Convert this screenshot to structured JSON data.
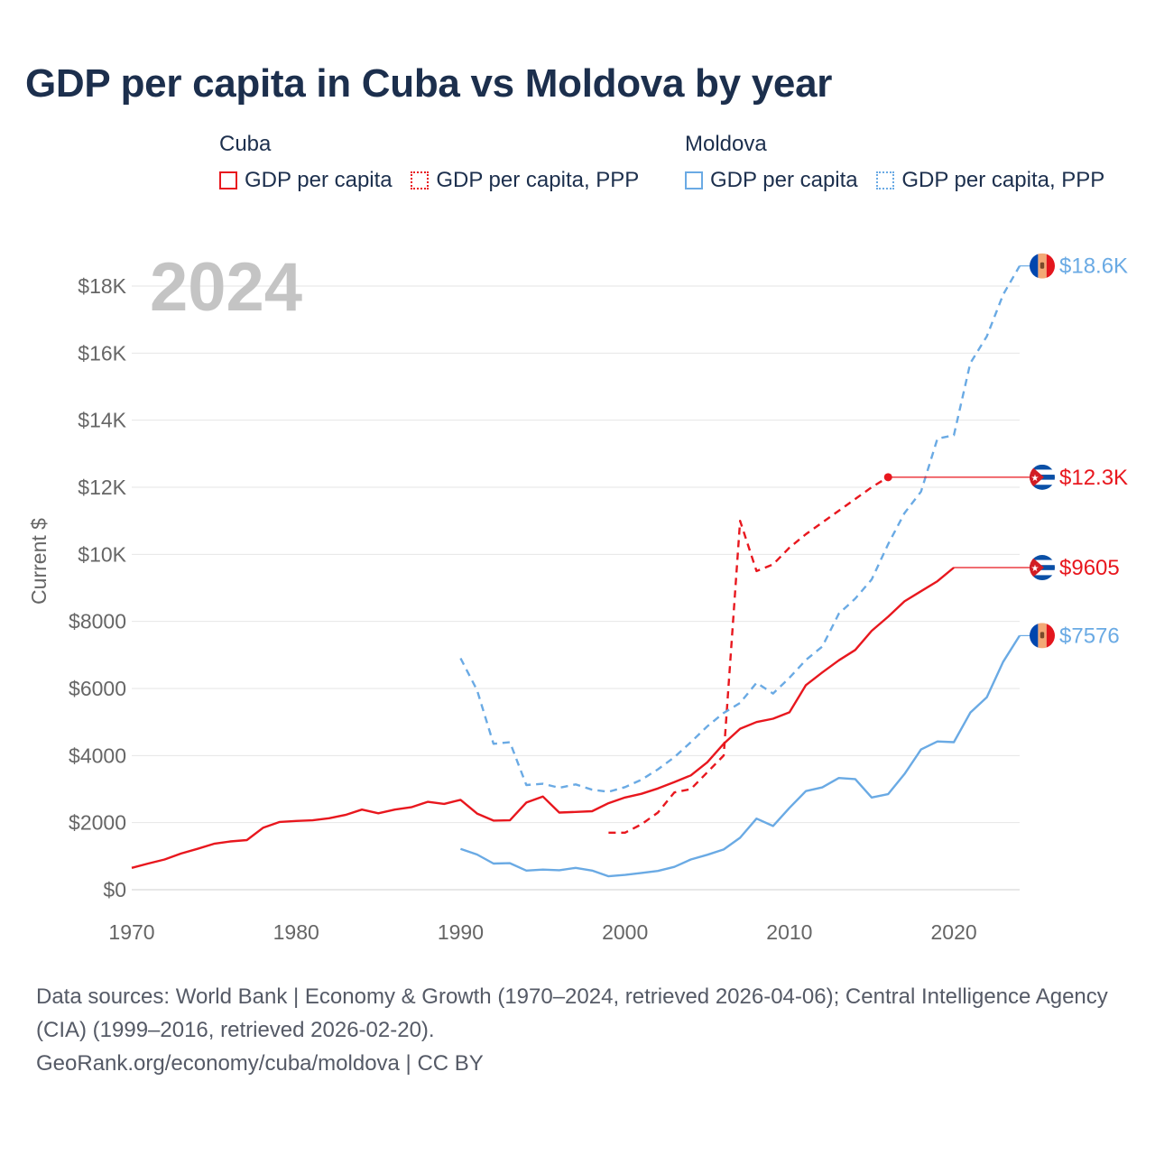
{
  "title": "GDP per capita in Cuba vs Moldova by year",
  "legend": {
    "cuba": {
      "name": "Cuba",
      "gdp": "GDP per capita",
      "ppp": "GDP per capita, PPP"
    },
    "moldova": {
      "name": "Moldova",
      "gdp": "GDP per capita",
      "ppp": "GDP per capita, PPP"
    }
  },
  "year_overlay": "2024",
  "source_text": "Data sources: World Bank | Economy & Growth (1970–2024, retrieved 2026-04-06); Central Intelligence Agency (CIA) (1999–2016, retrieved 2026-02-20).",
  "credit_text": "GeoRank.org/economy/cuba/moldova | CC BY",
  "colors": {
    "cuba": "#e8171e",
    "moldova": "#6aaae4",
    "title": "#1c2f4d",
    "axis_text": "#666666",
    "grid": "#e6e6e6",
    "year_overlay": "#c4c4c4"
  },
  "chart_data": {
    "type": "line",
    "title": "GDP per capita in Cuba vs Moldova by year",
    "xlabel": "",
    "ylabel": "Current $",
    "xlim": [
      1970,
      2024
    ],
    "ylim": [
      0,
      19000
    ],
    "x_ticks": [
      1970,
      1980,
      1990,
      2000,
      2010,
      2020
    ],
    "y_ticks": [
      {
        "value": 0,
        "label": "$0"
      },
      {
        "value": 2000,
        "label": "$2000"
      },
      {
        "value": 4000,
        "label": "$4000"
      },
      {
        "value": 6000,
        "label": "$6000"
      },
      {
        "value": 8000,
        "label": "$8000"
      },
      {
        "value": 10000,
        "label": "$10K"
      },
      {
        "value": 12000,
        "label": "$12K"
      },
      {
        "value": 14000,
        "label": "$14K"
      },
      {
        "value": 16000,
        "label": "$16K"
      },
      {
        "value": 18000,
        "label": "$18K"
      }
    ],
    "grid": true,
    "series": [
      {
        "name": "Cuba GDP per capita",
        "country": "cuba",
        "style": "solid",
        "end_label": "$9605",
        "points": [
          [
            1970,
            650
          ],
          [
            1971,
            780
          ],
          [
            1972,
            900
          ],
          [
            1973,
            1080
          ],
          [
            1974,
            1220
          ],
          [
            1975,
            1370
          ],
          [
            1976,
            1440
          ],
          [
            1977,
            1480
          ],
          [
            1978,
            1850
          ],
          [
            1979,
            2020
          ],
          [
            1980,
            2050
          ],
          [
            1981,
            2070
          ],
          [
            1982,
            2130
          ],
          [
            1983,
            2230
          ],
          [
            1984,
            2390
          ],
          [
            1985,
            2280
          ],
          [
            1986,
            2390
          ],
          [
            1987,
            2460
          ],
          [
            1988,
            2620
          ],
          [
            1989,
            2560
          ],
          [
            1990,
            2680
          ],
          [
            1991,
            2270
          ],
          [
            1992,
            2060
          ],
          [
            1993,
            2070
          ],
          [
            1994,
            2600
          ],
          [
            1995,
            2780
          ],
          [
            1996,
            2300
          ],
          [
            1997,
            2320
          ],
          [
            1998,
            2340
          ],
          [
            1999,
            2580
          ],
          [
            2000,
            2750
          ],
          [
            2001,
            2860
          ],
          [
            2002,
            3020
          ],
          [
            2003,
            3210
          ],
          [
            2004,
            3410
          ],
          [
            2005,
            3800
          ],
          [
            2006,
            4350
          ],
          [
            2007,
            4800
          ],
          [
            2008,
            5000
          ],
          [
            2009,
            5100
          ],
          [
            2010,
            5290
          ],
          [
            2011,
            6100
          ],
          [
            2012,
            6480
          ],
          [
            2013,
            6840
          ],
          [
            2014,
            7150
          ],
          [
            2015,
            7720
          ],
          [
            2016,
            8140
          ],
          [
            2017,
            8600
          ],
          [
            2018,
            8900
          ],
          [
            2019,
            9200
          ],
          [
            2020,
            9605
          ]
        ]
      },
      {
        "name": "Cuba GDP per capita, PPP",
        "country": "cuba",
        "style": "dashed",
        "end_label": "$12.3K",
        "points": [
          [
            1999,
            1700
          ],
          [
            2000,
            1700
          ],
          [
            2001,
            1950
          ],
          [
            2002,
            2300
          ],
          [
            2003,
            2900
          ],
          [
            2004,
            3000
          ],
          [
            2005,
            3500
          ],
          [
            2006,
            4000
          ],
          [
            2007,
            11000
          ],
          [
            2008,
            9500
          ],
          [
            2009,
            9700
          ],
          [
            2010,
            10200
          ],
          [
            2011,
            10600
          ],
          [
            2012,
            10950
          ],
          [
            2013,
            11300
          ],
          [
            2014,
            11650
          ],
          [
            2015,
            12000
          ],
          [
            2016,
            12300
          ]
        ]
      },
      {
        "name": "Moldova GDP per capita",
        "country": "moldova",
        "style": "solid",
        "end_label": "$7576",
        "points": [
          [
            1990,
            1220
          ],
          [
            1991,
            1050
          ],
          [
            1992,
            780
          ],
          [
            1993,
            790
          ],
          [
            1994,
            570
          ],
          [
            1995,
            600
          ],
          [
            1996,
            580
          ],
          [
            1997,
            650
          ],
          [
            1998,
            570
          ],
          [
            1999,
            400
          ],
          [
            2000,
            440
          ],
          [
            2001,
            500
          ],
          [
            2002,
            560
          ],
          [
            2003,
            680
          ],
          [
            2004,
            900
          ],
          [
            2005,
            1040
          ],
          [
            2006,
            1200
          ],
          [
            2007,
            1550
          ],
          [
            2008,
            2120
          ],
          [
            2009,
            1900
          ],
          [
            2010,
            2440
          ],
          [
            2011,
            2940
          ],
          [
            2012,
            3050
          ],
          [
            2013,
            3330
          ],
          [
            2014,
            3300
          ],
          [
            2015,
            2750
          ],
          [
            2016,
            2850
          ],
          [
            2017,
            3450
          ],
          [
            2018,
            4180
          ],
          [
            2019,
            4420
          ],
          [
            2020,
            4400
          ],
          [
            2021,
            5280
          ],
          [
            2022,
            5740
          ],
          [
            2023,
            6800
          ],
          [
            2024,
            7576
          ]
        ]
      },
      {
        "name": "Moldova GDP per capita, PPP",
        "country": "moldova",
        "style": "dashed",
        "end_label": "$18.6K",
        "points": [
          [
            1990,
            6900
          ],
          [
            1991,
            5950
          ],
          [
            1992,
            4350
          ],
          [
            1993,
            4400
          ],
          [
            1994,
            3120
          ],
          [
            1995,
            3160
          ],
          [
            1996,
            3040
          ],
          [
            1997,
            3140
          ],
          [
            1998,
            2980
          ],
          [
            1999,
            2920
          ],
          [
            2000,
            3060
          ],
          [
            2001,
            3280
          ],
          [
            2002,
            3590
          ],
          [
            2003,
            3950
          ],
          [
            2004,
            4400
          ],
          [
            2005,
            4870
          ],
          [
            2006,
            5270
          ],
          [
            2007,
            5570
          ],
          [
            2008,
            6170
          ],
          [
            2009,
            5850
          ],
          [
            2010,
            6320
          ],
          [
            2011,
            6850
          ],
          [
            2012,
            7250
          ],
          [
            2013,
            8230
          ],
          [
            2014,
            8680
          ],
          [
            2015,
            9250
          ],
          [
            2016,
            10300
          ],
          [
            2017,
            11230
          ],
          [
            2018,
            11870
          ],
          [
            2019,
            13450
          ],
          [
            2020,
            13550
          ],
          [
            2021,
            15700
          ],
          [
            2022,
            16500
          ],
          [
            2023,
            17750
          ],
          [
            2024,
            18600
          ]
        ]
      }
    ]
  }
}
